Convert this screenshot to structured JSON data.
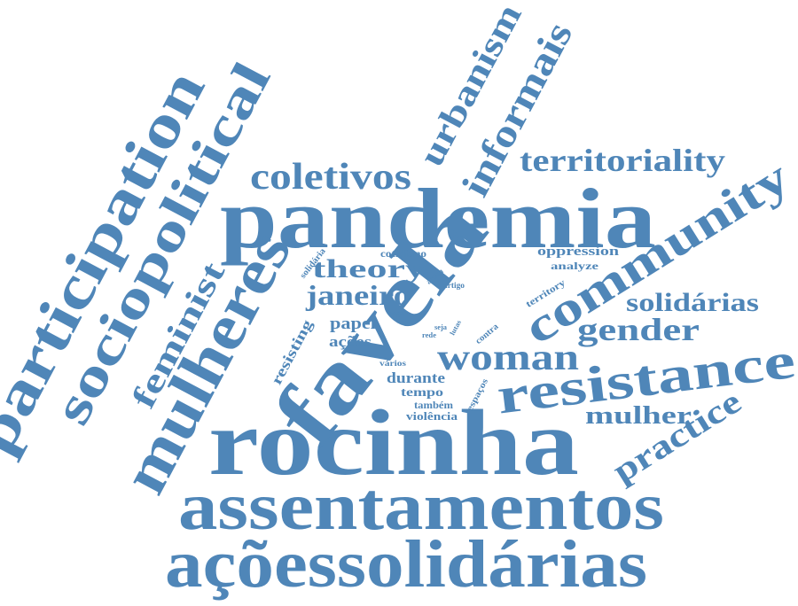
{
  "cloud": {
    "color": "#4f86b8",
    "words": [
      "rocinha",
      "favela",
      "pandemia",
      "assentamentos",
      "açõessolidárias",
      "resistance",
      "community",
      "mulheres",
      "participation",
      "sociopolitical",
      "informais",
      "urbanism",
      "territoriality",
      "coletivos",
      "woman",
      "gender",
      "solidárias",
      "mulher",
      "practice",
      "feminist",
      "theory",
      "janeiro",
      "papel",
      "ações",
      "resisting",
      "durante",
      "tempo",
      "também",
      "violência",
      "cotidiano",
      "solidária",
      "oppression",
      "analyze",
      "territory",
      "action",
      "artigo",
      "ongs",
      "rede",
      "seja",
      "lutas",
      "contra",
      "espaços",
      "vários"
    ]
  }
}
